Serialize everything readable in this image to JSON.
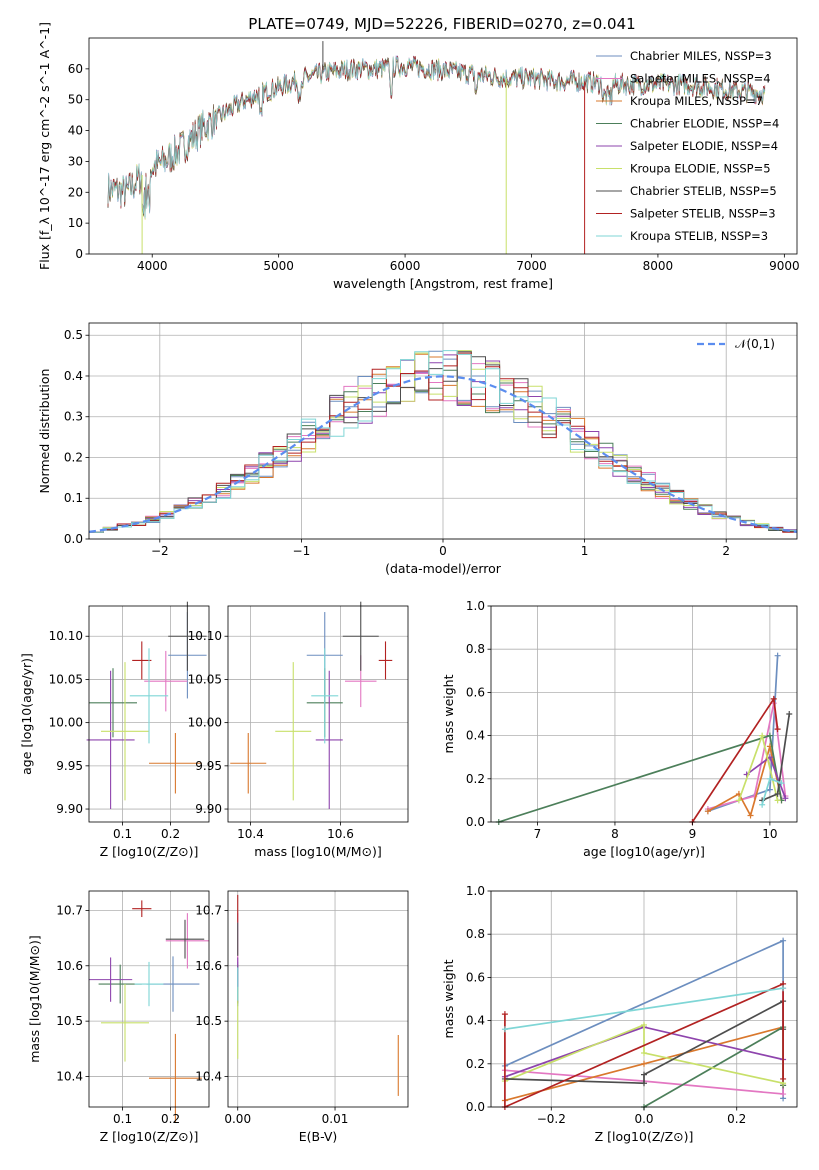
{
  "title": "PLATE=0749, MJD=52226, FIBERID=0270, z=0.041",
  "colors": [
    "#6c8ebf",
    "#e377c2",
    "#d9782d",
    "#4c7f5a",
    "#8e44ad",
    "#c8e06a",
    "#4d4d4d",
    "#b22222",
    "#7fd6d6"
  ],
  "chart_data": [
    {
      "id": "spectrum",
      "type": "line",
      "xlabel": "wavelength [Angstrom, rest frame]",
      "ylabel": "Flux [f_λ 10^-17 erg cm^-2 s^-1 A^-1]",
      "xlim": [
        3500,
        9100
      ],
      "ylim": [
        0,
        70
      ],
      "xticks": [
        4000,
        5000,
        6000,
        7000,
        8000,
        9000
      ],
      "yticks": [
        0,
        10,
        20,
        30,
        40,
        50,
        60
      ],
      "x_range": [
        3650,
        8850
      ],
      "legend_position": "right",
      "series": [
        {
          "name": "Chabrier MILES, N_SSP=3"
        },
        {
          "name": "Salpeter MILES, N_SSP=4"
        },
        {
          "name": "Kroupa MILES, N_SSP=7"
        },
        {
          "name": "Chabrier ELODIE, N_SSP=4"
        },
        {
          "name": "Salpeter ELODIE, N_SSP=4"
        },
        {
          "name": "Kroupa ELODIE, N_SSP=5"
        },
        {
          "name": "Chabrier STELIB, N_SSP=5"
        },
        {
          "name": "Salpeter STELIB, N_SSP=3"
        },
        {
          "name": "Kroupa STELIB, N_SSP=3"
        }
      ],
      "spectrum_shape": [
        [
          3650,
          21
        ],
        [
          3800,
          20
        ],
        [
          3950,
          27
        ],
        [
          4100,
          30
        ],
        [
          4250,
          35
        ],
        [
          4400,
          41
        ],
        [
          4550,
          45
        ],
        [
          4700,
          49
        ],
        [
          4850,
          52
        ],
        [
          5000,
          54
        ],
        [
          5200,
          57
        ],
        [
          5400,
          59
        ],
        [
          5600,
          60
        ],
        [
          5800,
          60
        ],
        [
          6000,
          61
        ],
        [
          6200,
          60
        ],
        [
          6400,
          59
        ],
        [
          6600,
          58
        ],
        [
          6800,
          57
        ],
        [
          7000,
          57
        ],
        [
          7200,
          56
        ],
        [
          7400,
          56
        ],
        [
          7600,
          55
        ],
        [
          7800,
          55
        ],
        [
          8000,
          55
        ],
        [
          8200,
          55
        ],
        [
          8400,
          54
        ],
        [
          8600,
          53
        ],
        [
          8850,
          52
        ]
      ]
    },
    {
      "id": "residuals",
      "type": "histogram",
      "xlabel": "(data-model)/error",
      "ylabel": "Normed distribution",
      "xlim": [
        -2.5,
        2.5
      ],
      "ylim": [
        0,
        0.53
      ],
      "xticks": [
        -2,
        -1,
        0,
        1,
        2
      ],
      "yticks": [
        0.0,
        0.1,
        0.2,
        0.3,
        0.4,
        0.5
      ],
      "bin_width": 0.1,
      "reference_curve": "𝒩(0,1)",
      "legend_position": "upper right"
    },
    {
      "id": "age_vs_Z",
      "type": "errorbar",
      "xlabel": "Z [log10(Z/Z⊙)]",
      "ylabel": "age  [log10(age/yr)]",
      "xlim": [
        0.03,
        0.28
      ],
      "ylim": [
        9.885,
        10.135
      ],
      "xticks": [
        0.1,
        0.2
      ],
      "yticks": [
        9.9,
        9.95,
        10.0,
        10.05,
        10.1
      ],
      "points": [
        {
          "x": 0.235,
          "y": 10.078,
          "xerr": 0.04,
          "yerr": 0.05
        },
        {
          "x": 0.19,
          "y": 10.048,
          "xerr": 0.045,
          "yerr": 0.035
        },
        {
          "x": 0.21,
          "y": 9.953,
          "xerr": 0.055,
          "yerr": 0.035
        },
        {
          "x": 0.08,
          "y": 10.023,
          "xerr": 0.05,
          "yerr": 0.04
        },
        {
          "x": 0.075,
          "y": 9.98,
          "xerr": 0.05,
          "yerr": 0.08
        },
        {
          "x": 0.105,
          "y": 9.99,
          "xerr": 0.05,
          "yerr": 0.08
        },
        {
          "x": 0.235,
          "y": 10.1,
          "xerr": 0.04,
          "yerr": 0.04
        },
        {
          "x": 0.14,
          "y": 10.072,
          "xerr": 0.02,
          "yerr": 0.022
        },
        {
          "x": 0.155,
          "y": 10.031,
          "xerr": 0.04,
          "yerr": 0.055
        }
      ]
    },
    {
      "id": "age_vs_mass",
      "type": "errorbar",
      "xlabel": "mass [log10(M/M⊙)]",
      "ylabel": "",
      "xlim": [
        10.35,
        10.75
      ],
      "ylim": [
        9.885,
        10.135
      ],
      "xticks": [
        10.4,
        10.6
      ],
      "yticks": [
        9.9,
        9.95,
        10.0,
        10.05,
        10.1
      ],
      "points": [
        {
          "x": 10.565,
          "y": 10.078,
          "xerr": 0.04,
          "yerr": 0.05
        },
        {
          "x": 10.645,
          "y": 10.048,
          "xerr": 0.035,
          "yerr": 0.03
        },
        {
          "x": 10.395,
          "y": 9.953,
          "xerr": 0.04,
          "yerr": 0.035
        },
        {
          "x": 10.565,
          "y": 10.023,
          "xerr": 0.04,
          "yerr": 0.04
        },
        {
          "x": 10.575,
          "y": 9.98,
          "xerr": 0.03,
          "yerr": 0.08
        },
        {
          "x": 10.495,
          "y": 9.99,
          "xerr": 0.04,
          "yerr": 0.08
        },
        {
          "x": 10.645,
          "y": 10.1,
          "xerr": 0.04,
          "yerr": 0.04
        },
        {
          "x": 10.7,
          "y": 10.072,
          "xerr": 0.015,
          "yerr": 0.022
        },
        {
          "x": 10.565,
          "y": 10.031,
          "xerr": 0.03,
          "yerr": 0.055
        }
      ]
    },
    {
      "id": "mass_weight_vs_age",
      "type": "line",
      "xlabel": "age  [log10(age/yr)]",
      "ylabel": "mass weight",
      "xlim": [
        6.4,
        10.35
      ],
      "ylim": [
        0,
        1.0
      ],
      "xticks": [
        7,
        8,
        9,
        10
      ],
      "yticks": [
        0.0,
        0.2,
        0.4,
        0.6,
        0.8,
        1.0
      ],
      "series": [
        {
          "x": [
            9.2,
            10.0,
            10.1
          ],
          "y": [
            0.05,
            0.15,
            0.77
          ]
        },
        {
          "x": [
            9.2,
            9.8,
            10.05,
            10.2
          ],
          "y": [
            0.06,
            0.12,
            0.55,
            0.12
          ]
        },
        {
          "x": [
            9.2,
            9.6,
            9.75,
            10.0,
            10.15
          ],
          "y": [
            0.05,
            0.13,
            0.03,
            0.35,
            0.1
          ]
        },
        {
          "x": [
            6.5,
            10.0,
            10.15
          ],
          "y": [
            0.0,
            0.4,
            0.1
          ]
        },
        {
          "x": [
            9.7,
            10.0,
            10.2
          ],
          "y": [
            0.22,
            0.3,
            0.11
          ]
        },
        {
          "x": [
            9.6,
            9.9,
            10.1
          ],
          "y": [
            0.1,
            0.4,
            0.1
          ]
        },
        {
          "x": [
            9.9,
            10.1,
            10.25
          ],
          "y": [
            0.1,
            0.13,
            0.5
          ]
        },
        {
          "x": [
            9.0,
            10.05,
            10.1
          ],
          "y": [
            0.0,
            0.57,
            0.43
          ]
        },
        {
          "x": [
            9.9,
            10.0,
            10.15
          ],
          "y": [
            0.08,
            0.2,
            0.18
          ]
        }
      ]
    },
    {
      "id": "mass_vs_Z",
      "type": "errorbar",
      "xlabel": "Z [log10(Z/Z⊙)]",
      "ylabel": "mass [log10(M/M⊙)]",
      "xlim": [
        0.03,
        0.28
      ],
      "ylim": [
        10.345,
        10.735
      ],
      "xticks": [
        0.1,
        0.2
      ],
      "yticks": [
        10.4,
        10.5,
        10.6,
        10.7
      ],
      "points": [
        {
          "x": 0.205,
          "y": 10.567,
          "xerr": 0.055,
          "yerr": 0.05
        },
        {
          "x": 0.235,
          "y": 10.645,
          "xerr": 0.045,
          "yerr": 0.05
        },
        {
          "x": 0.21,
          "y": 10.397,
          "xerr": 0.055,
          "yerr": 0.08
        },
        {
          "x": 0.095,
          "y": 10.567,
          "xerr": 0.045,
          "yerr": 0.035
        },
        {
          "x": 0.075,
          "y": 10.575,
          "xerr": 0.045,
          "yerr": 0.04
        },
        {
          "x": 0.105,
          "y": 10.497,
          "xerr": 0.05,
          "yerr": 0.07
        },
        {
          "x": 0.23,
          "y": 10.648,
          "xerr": 0.04,
          "yerr": 0.035
        },
        {
          "x": 0.14,
          "y": 10.703,
          "xerr": 0.02,
          "yerr": 0.015
        },
        {
          "x": 0.155,
          "y": 10.567,
          "xerr": 0.03,
          "yerr": 0.04
        }
      ]
    },
    {
      "id": "mass_vs_ebv",
      "type": "errorbar",
      "xlabel": "E(B-V)",
      "ylabel": "",
      "xlim": [
        -0.001,
        0.0175
      ],
      "ylim": [
        10.345,
        10.735
      ],
      "xticks": [
        0.0,
        0.01
      ],
      "yticks": [
        10.4,
        10.5,
        10.6,
        10.7
      ],
      "points": [
        {
          "x": 0.0,
          "y": 10.567,
          "xerr": 0,
          "yerr": 0.04
        },
        {
          "x": 0.0,
          "y": 10.645,
          "xerr": 0,
          "yerr": 0.05
        },
        {
          "x": 0.0165,
          "y": 10.42,
          "xerr": 0,
          "yerr": 0.055
        },
        {
          "x": 0.0,
          "y": 10.567,
          "xerr": 0,
          "yerr": 0.035
        },
        {
          "x": 0.0,
          "y": 10.575,
          "xerr": 0,
          "yerr": 0.04
        },
        {
          "x": 0.0,
          "y": 10.497,
          "xerr": 0,
          "yerr": 0.065
        },
        {
          "x": 0.0,
          "y": 10.648,
          "xerr": 0,
          "yerr": 0.03
        },
        {
          "x": 0.0,
          "y": 10.703,
          "xerr": 0,
          "yerr": 0.025
        },
        {
          "x": 0.0,
          "y": 10.567,
          "xerr": 0,
          "yerr": 0.03
        }
      ]
    },
    {
      "id": "mass_weight_vs_Z",
      "type": "line",
      "xlabel": "Z [log10(Z/Z⊙)]",
      "ylabel": "mass weight",
      "xlim": [
        -0.33,
        0.33
      ],
      "ylim": [
        0,
        1.0
      ],
      "xticks": [
        -0.2,
        0.0,
        0.2
      ],
      "yticks": [
        0.0,
        0.2,
        0.4,
        0.6,
        0.8,
        1.0
      ],
      "series": [
        {
          "x": [
            -0.3,
            0.3,
            0.3
          ],
          "y": [
            0.19,
            0.77,
            0.04
          ]
        },
        {
          "x": [
            -0.3,
            0.0,
            0.3,
            0.3
          ],
          "y": [
            0.17,
            0.12,
            0.06,
            0.55
          ]
        },
        {
          "x": [
            -0.3,
            0.0,
            0.3,
            0.3
          ],
          "y": [
            0.03,
            0.2,
            0.37,
            0.1
          ]
        },
        {
          "x": [
            0.0,
            0.3,
            0.3
          ],
          "y": [
            0.0,
            0.37,
            0.1
          ]
        },
        {
          "x": [
            -0.3,
            0.0,
            0.3
          ],
          "y": [
            0.14,
            0.37,
            0.22
          ]
        },
        {
          "x": [
            -0.3,
            0.0,
            0.0,
            0.3
          ],
          "y": [
            0.12,
            0.38,
            0.25,
            0.11
          ]
        },
        {
          "x": [
            -0.3,
            0.0,
            0.0,
            0.3,
            0.3
          ],
          "y": [
            0.13,
            0.11,
            0.15,
            0.49,
            0.36
          ]
        },
        {
          "x": [
            -0.3,
            -0.3,
            0.3,
            0.3
          ],
          "y": [
            0.43,
            0.0,
            0.57,
            0.13
          ]
        },
        {
          "x": [
            -0.3,
            0.3
          ],
          "y": [
            0.36,
            0.55
          ]
        }
      ]
    }
  ]
}
